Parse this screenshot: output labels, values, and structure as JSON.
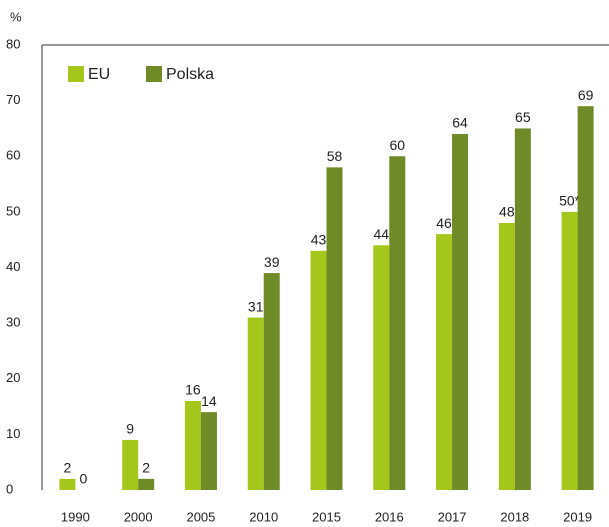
{
  "chart_data": {
    "type": "bar",
    "y_label": "%",
    "categories": [
      "1990",
      "2000",
      "2005",
      "2010",
      "2015",
      "2016",
      "2017",
      "2018",
      "2019"
    ],
    "series": [
      {
        "name": "EU",
        "color": "#a5c71c",
        "values": [
          2,
          9,
          16,
          31,
          43,
          44,
          46,
          48,
          50
        ],
        "value_labels": [
          "2",
          "9",
          "16",
          "31",
          "43",
          "44",
          "46",
          "48",
          "50*"
        ]
      },
      {
        "name": "Polska",
        "color": "#6e8b27",
        "values": [
          0,
          2,
          14,
          39,
          58,
          60,
          64,
          65,
          69
        ]
      }
    ],
    "ylim": [
      0,
      80
    ],
    "yticks": [
      0,
      10,
      20,
      30,
      40,
      50,
      60,
      70,
      80
    ],
    "legend": "upper left"
  }
}
